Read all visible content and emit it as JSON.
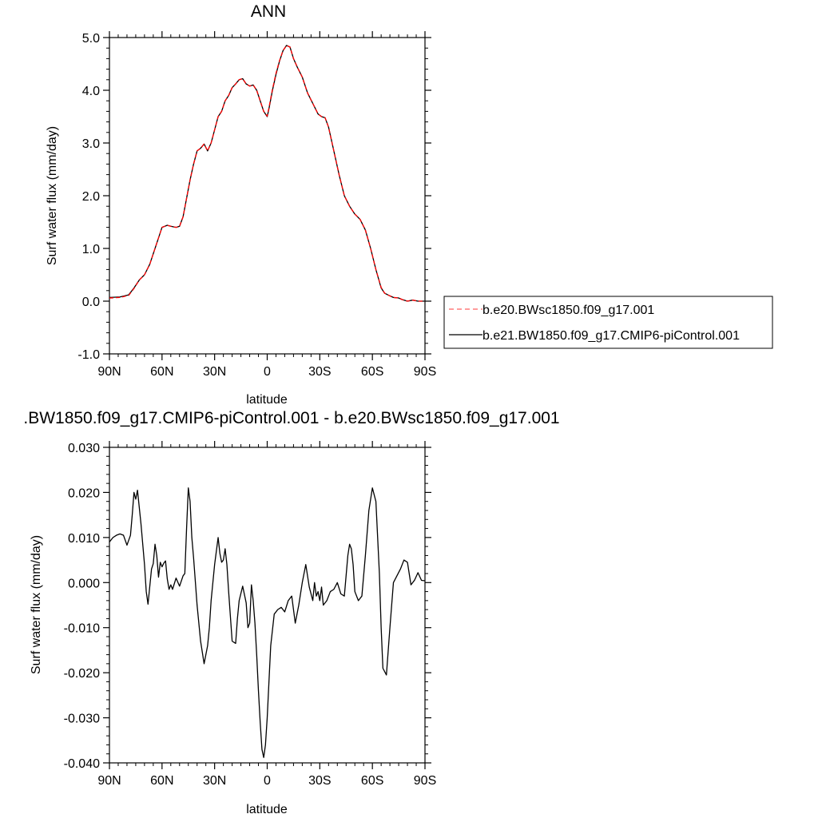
{
  "chart_data": [
    {
      "type": "line",
      "title": "ANN",
      "xlabel": "latitude",
      "ylabel": "Surf water flux (mm/day)",
      "xlim": [
        90,
        -90
      ],
      "ylim": [
        -1.0,
        5.0
      ],
      "xticks": [
        {
          "value": 90,
          "label": "90N"
        },
        {
          "value": 60,
          "label": "60N"
        },
        {
          "value": 30,
          "label": "30N"
        },
        {
          "value": 0,
          "label": "0"
        },
        {
          "value": -30,
          "label": "30S"
        },
        {
          "value": -60,
          "label": "60S"
        },
        {
          "value": -90,
          "label": "90S"
        }
      ],
      "yticks": [
        {
          "value": 5.0,
          "label": "5.0"
        },
        {
          "value": 4.0,
          "label": "4.0"
        },
        {
          "value": 3.0,
          "label": "3.0"
        },
        {
          "value": 2.0,
          "label": "2.0"
        },
        {
          "value": 1.0,
          "label": "1.0"
        },
        {
          "value": 0.0,
          "label": "0.0"
        },
        {
          "value": -1.0,
          "label": "-1.0"
        }
      ],
      "legend_position": "right",
      "series": [
        {
          "name": "b.e21.BW1850.f09_g17.CMIP6-piControl.001",
          "color": "#000000",
          "dash": "solid",
          "x": [
            90,
            84,
            79,
            76,
            73,
            70,
            67,
            64,
            62,
            60,
            57,
            55,
            52,
            50,
            48,
            46,
            44,
            42,
            40,
            38,
            36,
            34,
            32,
            30,
            28,
            26,
            24,
            22,
            20,
            18,
            16,
            14,
            12,
            10,
            8,
            6,
            4,
            2,
            0,
            -1,
            -3,
            -5,
            -7,
            -9,
            -11,
            -13,
            -15,
            -17,
            -20,
            -23,
            -26,
            -29,
            -31,
            -33,
            -35,
            -38,
            -41,
            -44,
            -47,
            -50,
            -53,
            -56,
            -59,
            -62,
            -65,
            -67,
            -70,
            -72,
            -75,
            -77,
            -80,
            -83,
            -86,
            -90
          ],
          "y": [
            0.07,
            0.08,
            0.12,
            0.25,
            0.4,
            0.5,
            0.7,
            1.0,
            1.2,
            1.4,
            1.44,
            1.42,
            1.4,
            1.42,
            1.6,
            1.95,
            2.3,
            2.6,
            2.85,
            2.9,
            2.98,
            2.85,
            3.0,
            3.25,
            3.5,
            3.6,
            3.8,
            3.9,
            4.05,
            4.12,
            4.2,
            4.22,
            4.12,
            4.08,
            4.1,
            4.0,
            3.8,
            3.6,
            3.5,
            3.65,
            4.0,
            4.3,
            4.55,
            4.75,
            4.85,
            4.82,
            4.6,
            4.45,
            4.25,
            3.95,
            3.75,
            3.55,
            3.5,
            3.48,
            3.3,
            2.85,
            2.4,
            2.0,
            1.8,
            1.65,
            1.55,
            1.35,
            1.0,
            0.6,
            0.25,
            0.15,
            0.1,
            0.07,
            0.06,
            0.03,
            0.0,
            0.02,
            0.0,
            0.0
          ]
        },
        {
          "name": "b.e20.BWsc1850.f09_g17.001",
          "color": "#ff0000",
          "dash": "dashed",
          "x": [
            90,
            84,
            79,
            76,
            73,
            70,
            67,
            64,
            62,
            60,
            57,
            55,
            52,
            50,
            48,
            46,
            44,
            42,
            40,
            38,
            36,
            34,
            32,
            30,
            28,
            26,
            24,
            22,
            20,
            18,
            16,
            14,
            12,
            10,
            8,
            6,
            4,
            2,
            0,
            -1,
            -3,
            -5,
            -7,
            -9,
            -11,
            -13,
            -15,
            -17,
            -20,
            -23,
            -26,
            -29,
            -31,
            -33,
            -35,
            -38,
            -41,
            -44,
            -47,
            -50,
            -53,
            -56,
            -59,
            -62,
            -65,
            -67,
            -70,
            -72,
            -75,
            -77,
            -80,
            -83,
            -86,
            -90
          ],
          "y": [
            0.06,
            0.07,
            0.11,
            0.24,
            0.4,
            0.5,
            0.7,
            1.0,
            1.2,
            1.4,
            1.44,
            1.42,
            1.4,
            1.42,
            1.6,
            1.95,
            2.3,
            2.6,
            2.85,
            2.9,
            2.98,
            2.85,
            3.0,
            3.25,
            3.5,
            3.6,
            3.8,
            3.9,
            4.05,
            4.12,
            4.2,
            4.22,
            4.12,
            4.08,
            4.1,
            4.0,
            3.8,
            3.6,
            3.51,
            3.67,
            4.02,
            4.32,
            4.56,
            4.75,
            4.85,
            4.82,
            4.6,
            4.45,
            4.25,
            3.95,
            3.75,
            3.55,
            3.5,
            3.48,
            3.3,
            2.85,
            2.4,
            2.0,
            1.8,
            1.65,
            1.55,
            1.35,
            1.0,
            0.6,
            0.26,
            0.15,
            0.1,
            0.07,
            0.06,
            0.03,
            0.0,
            0.02,
            0.0,
            0.0
          ]
        }
      ]
    },
    {
      "type": "line",
      "title": ".BW1850.f09_g17.CMIP6-piControl.001 - b.e20.BWsc1850.f09_g17.001",
      "xlabel": "latitude",
      "ylabel": "Surf water flux (mm/day)",
      "xlim": [
        90,
        -90
      ],
      "ylim": [
        -0.04,
        0.03
      ],
      "xticks": [
        {
          "value": 90,
          "label": "90N"
        },
        {
          "value": 60,
          "label": "60N"
        },
        {
          "value": 30,
          "label": "30N"
        },
        {
          "value": 0,
          "label": "0"
        },
        {
          "value": -30,
          "label": "30S"
        },
        {
          "value": -60,
          "label": "60S"
        },
        {
          "value": -90,
          "label": "90S"
        }
      ],
      "yticks": [
        {
          "value": 0.03,
          "label": "0.030"
        },
        {
          "value": 0.02,
          "label": "0.020"
        },
        {
          "value": 0.01,
          "label": "0.010"
        },
        {
          "value": 0.0,
          "label": "0.000"
        },
        {
          "value": -0.01,
          "label": "-0.010"
        },
        {
          "value": -0.02,
          "label": "-0.020"
        },
        {
          "value": -0.03,
          "label": "-0.030"
        },
        {
          "value": -0.04,
          "label": "-0.040"
        }
      ],
      "series": [
        {
          "color": "#000000",
          "dash": "solid",
          "x": [
            90,
            88,
            86,
            84,
            82,
            80,
            78,
            77,
            76,
            75,
            74,
            72,
            70,
            69,
            68,
            66,
            65,
            64,
            63,
            62,
            61,
            60,
            59,
            58,
            57,
            56,
            55,
            54,
            52,
            50,
            48,
            47,
            46,
            45,
            44,
            43,
            42,
            40,
            38,
            36,
            34,
            33,
            32,
            30,
            28,
            27,
            26,
            25,
            24,
            23,
            22,
            20,
            18,
            17,
            16,
            14,
            12,
            11,
            10,
            9,
            8,
            7,
            6,
            5,
            4,
            3,
            2,
            1,
            0,
            -1,
            -2,
            -4,
            -6,
            -8,
            -10,
            -12,
            -14,
            -16,
            -18,
            -20,
            -22,
            -24,
            -26,
            -27,
            -28,
            -29,
            -30,
            -31,
            -32,
            -34,
            -36,
            -38,
            -40,
            -42,
            -44,
            -45,
            -46,
            -47,
            -48,
            -49,
            -50,
            -52,
            -54,
            -56,
            -58,
            -60,
            -62,
            -63,
            -64,
            -65,
            -66,
            -68,
            -70,
            -72,
            -74,
            -76,
            -78,
            -80,
            -82,
            -84,
            -86,
            -88,
            -90
          ],
          "y": [
            0.009,
            0.01,
            0.0105,
            0.0108,
            0.0105,
            0.0083,
            0.0105,
            0.015,
            0.02,
            0.0185,
            0.0205,
            0.013,
            0.004,
            -0.002,
            -0.0048,
            0.003,
            0.0042,
            0.0085,
            0.006,
            0.0012,
            0.0045,
            0.0035,
            0.0043,
            0.0048,
            0.0008,
            -0.0015,
            -0.0005,
            -0.0015,
            0.001,
            -0.0008,
            0.0015,
            0.002,
            0.012,
            0.021,
            0.018,
            0.01,
            0.0055,
            -0.005,
            -0.013,
            -0.018,
            -0.014,
            -0.01,
            -0.004,
            0.004,
            0.01,
            0.0065,
            0.0045,
            0.005,
            0.0075,
            0.004,
            -0.002,
            -0.013,
            -0.0135,
            -0.008,
            -0.004,
            -0.0008,
            -0.0045,
            -0.01,
            -0.009,
            -0.0005,
            -0.004,
            -0.009,
            -0.016,
            -0.024,
            -0.031,
            -0.037,
            -0.0388,
            -0.036,
            -0.03,
            -0.022,
            -0.014,
            -0.007,
            -0.006,
            -0.0055,
            -0.0065,
            -0.004,
            -0.003,
            -0.009,
            -0.005,
            0.0,
            0.004,
            -0.001,
            -0.004,
            0.0,
            -0.003,
            -0.002,
            -0.004,
            -0.001,
            -0.005,
            -0.004,
            -0.002,
            -0.0015,
            0.0,
            -0.0025,
            -0.003,
            0.0015,
            0.006,
            0.0085,
            0.0075,
            0.004,
            -0.002,
            -0.004,
            -0.003,
            0.006,
            0.016,
            0.021,
            0.018,
            0.01,
            0.002,
            -0.01,
            -0.019,
            -0.0205,
            -0.01,
            0.0,
            0.0015,
            0.003,
            0.005,
            0.0045,
            -0.0005,
            0.0005,
            0.0022,
            0.0005,
            0.0004
          ]
        }
      ]
    }
  ]
}
